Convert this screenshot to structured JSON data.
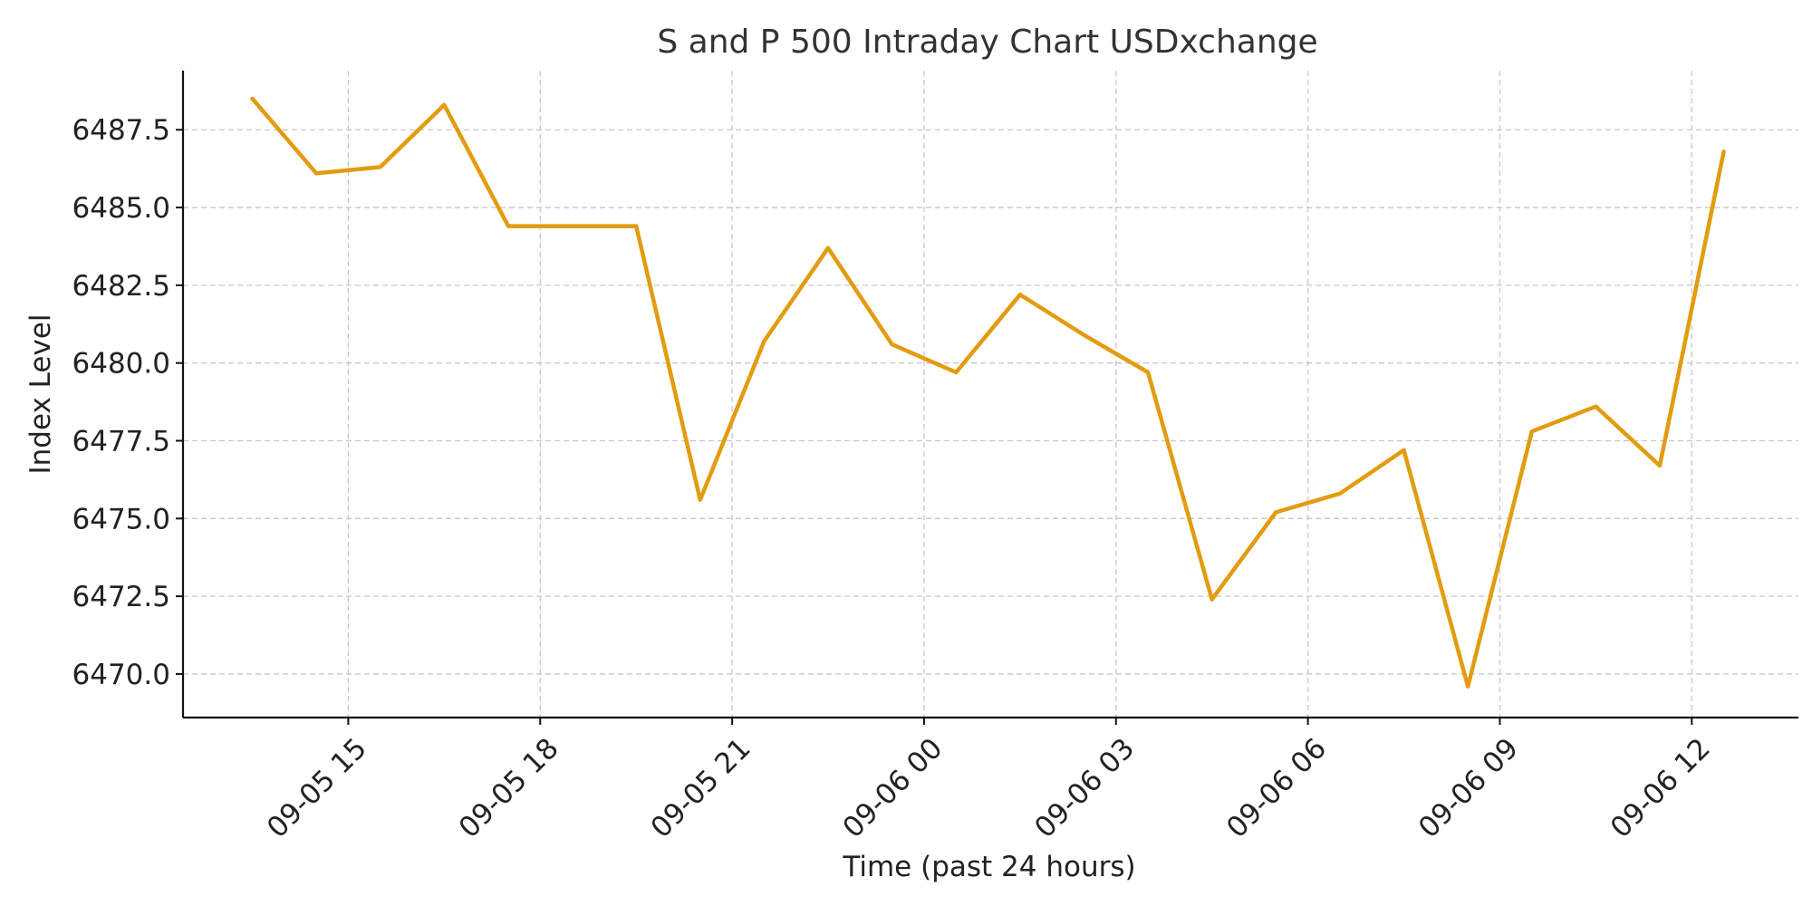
{
  "chart_data": {
    "type": "line",
    "title": "S and P 500 Intraday Chart USDxchange",
    "xlabel": "Time (past 24 hours)",
    "ylabel": "Index Level",
    "grid": true,
    "x_tick_labels": [
      "09-05 15",
      "09-05 18",
      "09-05 21",
      "09-06 00",
      "09-06 03",
      "09-06 06",
      "09-06 09",
      "09-06 12"
    ],
    "y_tick_labels": [
      "6470.0",
      "6472.5",
      "6475.0",
      "6477.5",
      "6480.0",
      "6482.5",
      "6485.0",
      "6487.5"
    ],
    "ylim": [
      6468.6,
      6489.4
    ],
    "xlim": [
      "2025-09-05 12:25",
      "2025-09-06 13:40"
    ],
    "series": [
      {
        "color": "#E39B0F",
        "x": [
          "2025-09-05 13:30",
          "2025-09-05 14:30",
          "2025-09-05 15:30",
          "2025-09-05 16:30",
          "2025-09-05 17:30",
          "2025-09-05 18:30",
          "2025-09-05 19:30",
          "2025-09-05 20:30",
          "2025-09-05 21:30",
          "2025-09-05 22:30",
          "2025-09-05 23:30",
          "2025-09-06 00:30",
          "2025-09-06 01:30",
          "2025-09-06 02:30",
          "2025-09-06 03:30",
          "2025-09-06 04:30",
          "2025-09-06 05:30",
          "2025-09-06 06:30",
          "2025-09-06 07:30",
          "2025-09-06 08:30",
          "2025-09-06 09:30",
          "2025-09-06 10:30",
          "2025-09-06 11:30",
          "2025-09-06 12:30"
        ],
        "values": [
          6488.5,
          6486.1,
          6486.3,
          6488.3,
          6484.4,
          6484.4,
          6484.4,
          6475.6,
          6480.7,
          6483.7,
          6480.6,
          6479.7,
          6482.2,
          6480.9,
          6479.7,
          6472.4,
          6475.2,
          6475.8,
          6477.2,
          6469.6,
          6477.8,
          6478.6,
          6476.7,
          6486.8
        ]
      }
    ]
  }
}
